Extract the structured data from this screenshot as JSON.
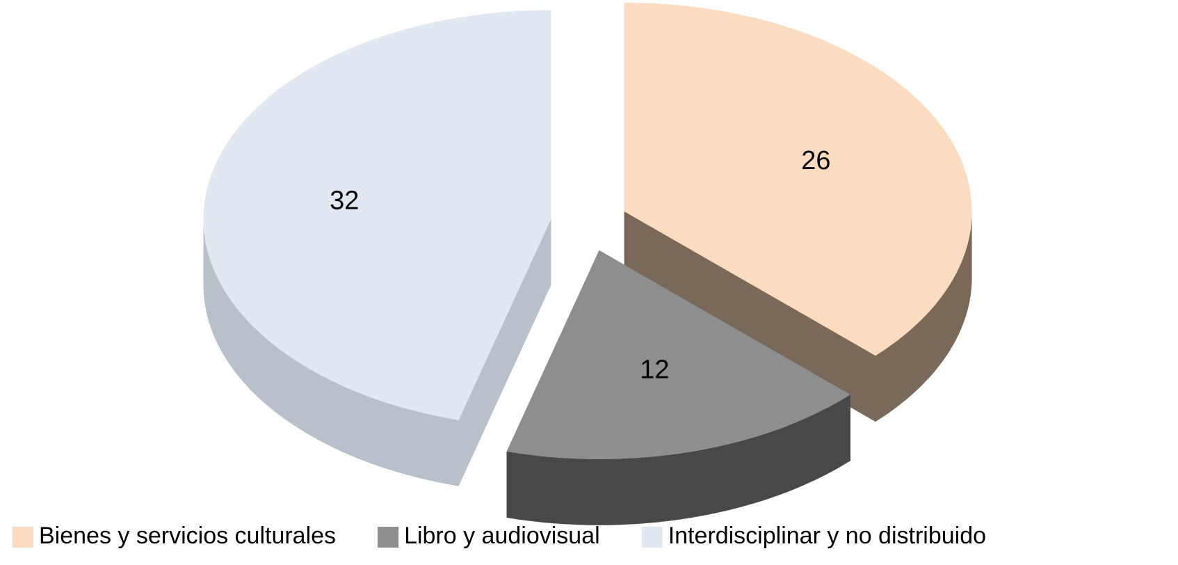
{
  "chart_data": {
    "type": "pie",
    "categories": [
      "Bienes y servicios culturales",
      "Libro y audiovisual",
      "Interdisciplinar y no distribuido"
    ],
    "values": [
      26,
      12,
      32
    ],
    "colors": [
      "#fbdcc0",
      "#8e8e8e",
      "#e2e8f1"
    ],
    "side_colors": [
      "#7a6858",
      "#484848",
      "#b8c0cb"
    ],
    "legend": "bottom"
  }
}
